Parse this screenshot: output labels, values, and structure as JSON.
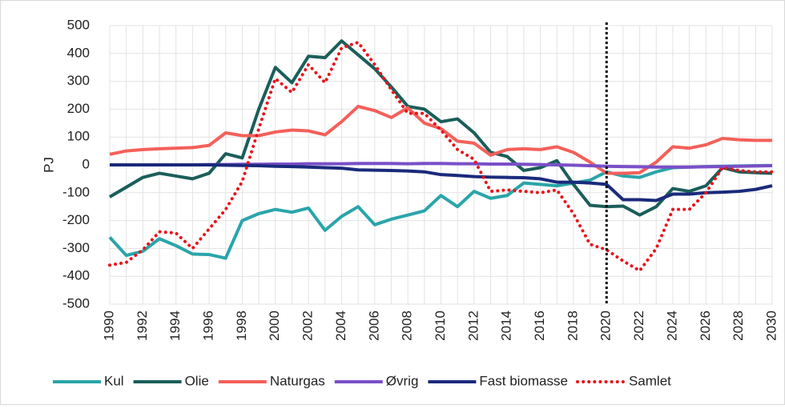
{
  "chart_data": {
    "type": "line",
    "y_label": "PJ",
    "x": [
      1990,
      1991,
      1992,
      1993,
      1994,
      1995,
      1996,
      1997,
      1998,
      1999,
      2000,
      2001,
      2002,
      2003,
      2004,
      2005,
      2006,
      2007,
      2008,
      2009,
      2010,
      2011,
      2012,
      2013,
      2014,
      2015,
      2016,
      2017,
      2018,
      2019,
      2020,
      2021,
      2022,
      2023,
      2024,
      2025,
      2026,
      2027,
      2028,
      2029,
      2030
    ],
    "xlim": [
      1990,
      2030
    ],
    "xticks": [
      1990,
      1992,
      1994,
      1996,
      1998,
      2000,
      2002,
      2004,
      2006,
      2008,
      2010,
      2012,
      2014,
      2016,
      2018,
      2020,
      2022,
      2024,
      2026,
      2028,
      2030
    ],
    "ylim": [
      -500,
      500
    ],
    "yticks": [
      -500,
      -400,
      -300,
      -200,
      -100,
      0,
      100,
      200,
      300,
      400,
      500
    ],
    "grid": true,
    "vline": 2020,
    "legend": "bottom",
    "series": [
      {
        "name": "Kul",
        "color": "#2aa5aa",
        "style": "solid",
        "values": [
          -260,
          -325,
          -310,
          -265,
          -290,
          -320,
          -322,
          -335,
          -200,
          -175,
          -160,
          -170,
          -155,
          -235,
          -185,
          -150,
          -215,
          -195,
          -180,
          -165,
          -110,
          -150,
          -95,
          -120,
          -110,
          -65,
          -70,
          -75,
          -65,
          -55,
          -25,
          -40,
          -45,
          -25,
          -10,
          -8,
          -6,
          -5,
          -4,
          -3,
          -2
        ]
      },
      {
        "name": "Olie",
        "color": "#1b5e5a",
        "style": "solid",
        "values": [
          -115,
          -80,
          -45,
          -30,
          -40,
          -50,
          -30,
          40,
          25,
          200,
          350,
          295,
          390,
          385,
          445,
          395,
          345,
          280,
          210,
          200,
          155,
          165,
          115,
          45,
          30,
          -20,
          -10,
          15,
          -70,
          -145,
          -150,
          -148,
          -180,
          -150,
          -85,
          -95,
          -75,
          -10,
          -25,
          -28,
          -30
        ]
      },
      {
        "name": "Naturgas",
        "color": "#f4605a",
        "style": "solid",
        "values": [
          38,
          50,
          55,
          58,
          60,
          62,
          70,
          115,
          105,
          105,
          118,
          125,
          122,
          108,
          155,
          210,
          195,
          170,
          205,
          150,
          130,
          85,
          78,
          35,
          55,
          58,
          55,
          65,
          45,
          10,
          -30,
          -30,
          -28,
          10,
          65,
          60,
          72,
          95,
          90,
          88,
          88
        ]
      },
      {
        "name": "Øvrig",
        "color": "#7a4fc8",
        "style": "solid",
        "values": [
          0,
          0,
          0,
          0,
          0,
          0,
          1,
          1,
          2,
          2,
          3,
          3,
          4,
          4,
          4,
          5,
          5,
          5,
          4,
          5,
          5,
          4,
          4,
          3,
          3,
          2,
          1,
          0,
          -1,
          -3,
          -5,
          -6,
          -7,
          -8,
          -8,
          -8,
          -7,
          -6,
          -5,
          -4,
          -3
        ]
      },
      {
        "name": "Fast biomasse",
        "color": "#1a2a7c",
        "style": "solid",
        "values": [
          0,
          0,
          0,
          0,
          0,
          0,
          0,
          -1,
          -2,
          -3,
          -5,
          -6,
          -8,
          -10,
          -12,
          -18,
          -19,
          -20,
          -22,
          -25,
          -35,
          -38,
          -42,
          -44,
          -45,
          -46,
          -50,
          -62,
          -62,
          -65,
          -70,
          -125,
          -125,
          -128,
          -105,
          -105,
          -100,
          -98,
          -95,
          -88,
          -75
        ]
      },
      {
        "name": "Samlet",
        "color": "#e8141c",
        "style": "dotted",
        "values": [
          -360,
          -350,
          -305,
          -240,
          -245,
          -300,
          -230,
          -160,
          -60,
          130,
          310,
          260,
          360,
          295,
          420,
          440,
          360,
          270,
          185,
          185,
          125,
          55,
          20,
          -95,
          -90,
          -95,
          -100,
          -90,
          -175,
          -285,
          -305,
          -345,
          -380,
          -300,
          -160,
          -160,
          -100,
          -10,
          -20,
          -25,
          -25
        ]
      }
    ]
  }
}
